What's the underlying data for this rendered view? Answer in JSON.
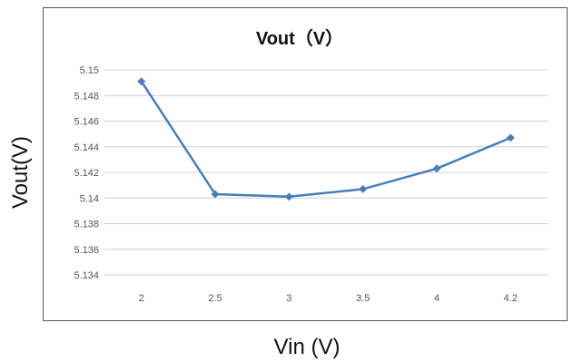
{
  "chart_data": {
    "type": "line",
    "title": "Vout（V）",
    "xlabel": "Vin (V)",
    "ylabel": "Vout(V)",
    "categories": [
      "2",
      "2.5",
      "3",
      "3.5",
      "4",
      "4.2"
    ],
    "series": [
      {
        "values": [
          5.1491,
          5.1403,
          5.1401,
          5.1407,
          5.1423,
          5.1447
        ],
        "color": "#4a7ebb"
      }
    ],
    "ylim": [
      5.134,
      5.15
    ],
    "yticks": [
      "5.134",
      "5.136",
      "5.138",
      "5.14",
      "5.142",
      "5.144",
      "5.146",
      "5.148",
      "5.15"
    ],
    "grid": true,
    "legend": "none"
  }
}
